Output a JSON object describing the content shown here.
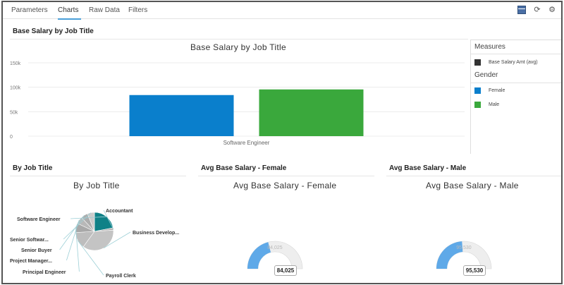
{
  "tabs": [
    {
      "label": "Parameters"
    },
    {
      "label": "Charts"
    },
    {
      "label": "Raw Data"
    },
    {
      "label": "Filters"
    }
  ],
  "toolbar": {
    "icons": [
      "grid-icon",
      "refresh-icon",
      "gear-icon"
    ]
  },
  "main_section": {
    "title": "Base Salary by Job Title"
  },
  "bar_chart": {
    "title": "Base Salary by Job Title"
  },
  "legend": {
    "measures_heading": "Measures",
    "measure_label": "Base Salary Amt (avg)",
    "gender_heading": "Gender",
    "items": [
      {
        "label": "Female",
        "color": "#0a7fcc"
      },
      {
        "label": "Male",
        "color": "#3aa83c"
      }
    ]
  },
  "sections": {
    "job_title": "By Job Title",
    "female": "Avg Base Salary - Female",
    "male": "Avg Base Salary - Male"
  },
  "pie_chart_title": "By Job Title",
  "gauge_female": {
    "title": "Avg Base Salary - Female",
    "value_label": "84,025",
    "overlay_label": "84,025"
  },
  "gauge_male": {
    "title": "Avg Base Salary - Male",
    "value_label": "95,530",
    "overlay_label": "95,530"
  },
  "chart_data": [
    {
      "type": "bar",
      "title": "Base Salary by Job Title",
      "categories": [
        "Software Engineer"
      ],
      "series": [
        {
          "name": "Female",
          "values": [
            84025
          ],
          "color": "#0a7fcc"
        },
        {
          "name": "Male",
          "values": [
            95530
          ],
          "color": "#3aa83c"
        }
      ],
      "yticks": [
        0,
        50000,
        100000,
        150000
      ],
      "ytick_labels": [
        "0",
        "50k",
        "100k",
        "150k"
      ],
      "ylim": [
        0,
        150000
      ],
      "xlabel": "",
      "ylabel": ""
    },
    {
      "type": "pie",
      "title": "By Job Title",
      "labels": [
        "Software Engineer",
        "Accountant",
        "Business Develop...",
        "Payroll Clerk",
        "Principal Engineer",
        "Project Manager...",
        "Senior Buyer",
        "Senior Softwar..."
      ],
      "values": [
        22,
        2,
        36,
        14,
        8,
        6,
        6,
        6
      ],
      "colors": [
        "#0f8187",
        "#b3b3b3",
        "#c4c4c4",
        "#bdbdbd",
        "#a8a8a8",
        "#b8b8b8",
        "#adadad",
        "#cbcbcb"
      ]
    },
    {
      "type": "gauge",
      "title": "Avg Base Salary - Female",
      "value": 84025,
      "range": [
        0,
        200000
      ],
      "color": "#5fa9e8"
    },
    {
      "type": "gauge",
      "title": "Avg Base Salary - Male",
      "value": 95530,
      "range": [
        0,
        200000
      ],
      "color": "#5fa9e8"
    }
  ]
}
